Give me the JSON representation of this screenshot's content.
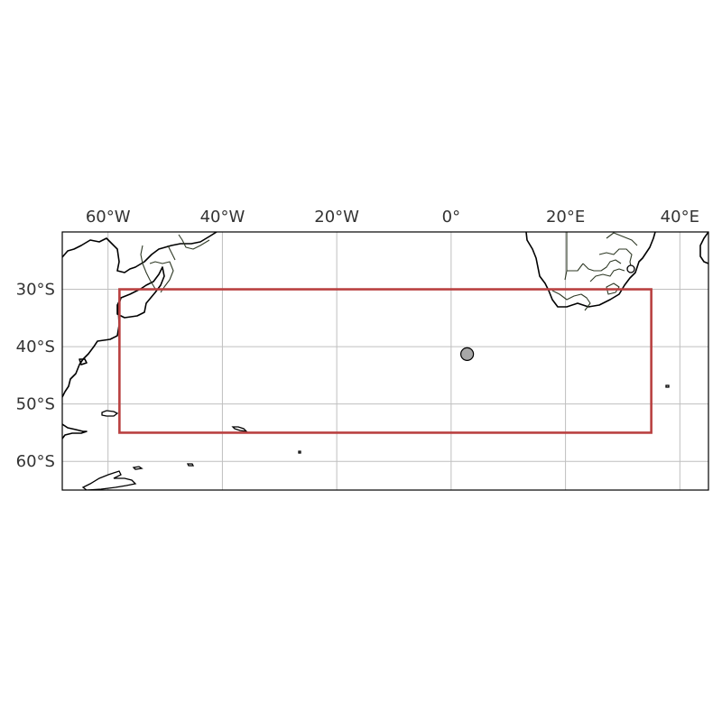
{
  "map": {
    "projection": "PlateCarree",
    "extent": {
      "lon": [
        -68,
        45
      ],
      "lat": [
        -65,
        -20
      ]
    },
    "lon_ticks": [
      {
        "value": -60,
        "label": "60°W"
      },
      {
        "value": -40,
        "label": "40°W"
      },
      {
        "value": -20,
        "label": "20°W"
      },
      {
        "value": 0,
        "label": "0°"
      },
      {
        "value": 20,
        "label": "20°E"
      },
      {
        "value": 40,
        "label": "40°E"
      }
    ],
    "lat_ticks": [
      {
        "value": -30,
        "label": "30°S"
      },
      {
        "value": -40,
        "label": "40°S"
      },
      {
        "value": -50,
        "label": "50°S"
      },
      {
        "value": -60,
        "label": "60°S"
      }
    ],
    "gridlines": true,
    "region_box": {
      "lon_min": -58,
      "lon_max": 35,
      "lat_min": -55,
      "lat_max": -30,
      "color": "#b94040"
    },
    "marker": {
      "lon": 2.8,
      "lat": -41.3,
      "fill": "#a8a8a8",
      "stroke": "#000000"
    }
  }
}
